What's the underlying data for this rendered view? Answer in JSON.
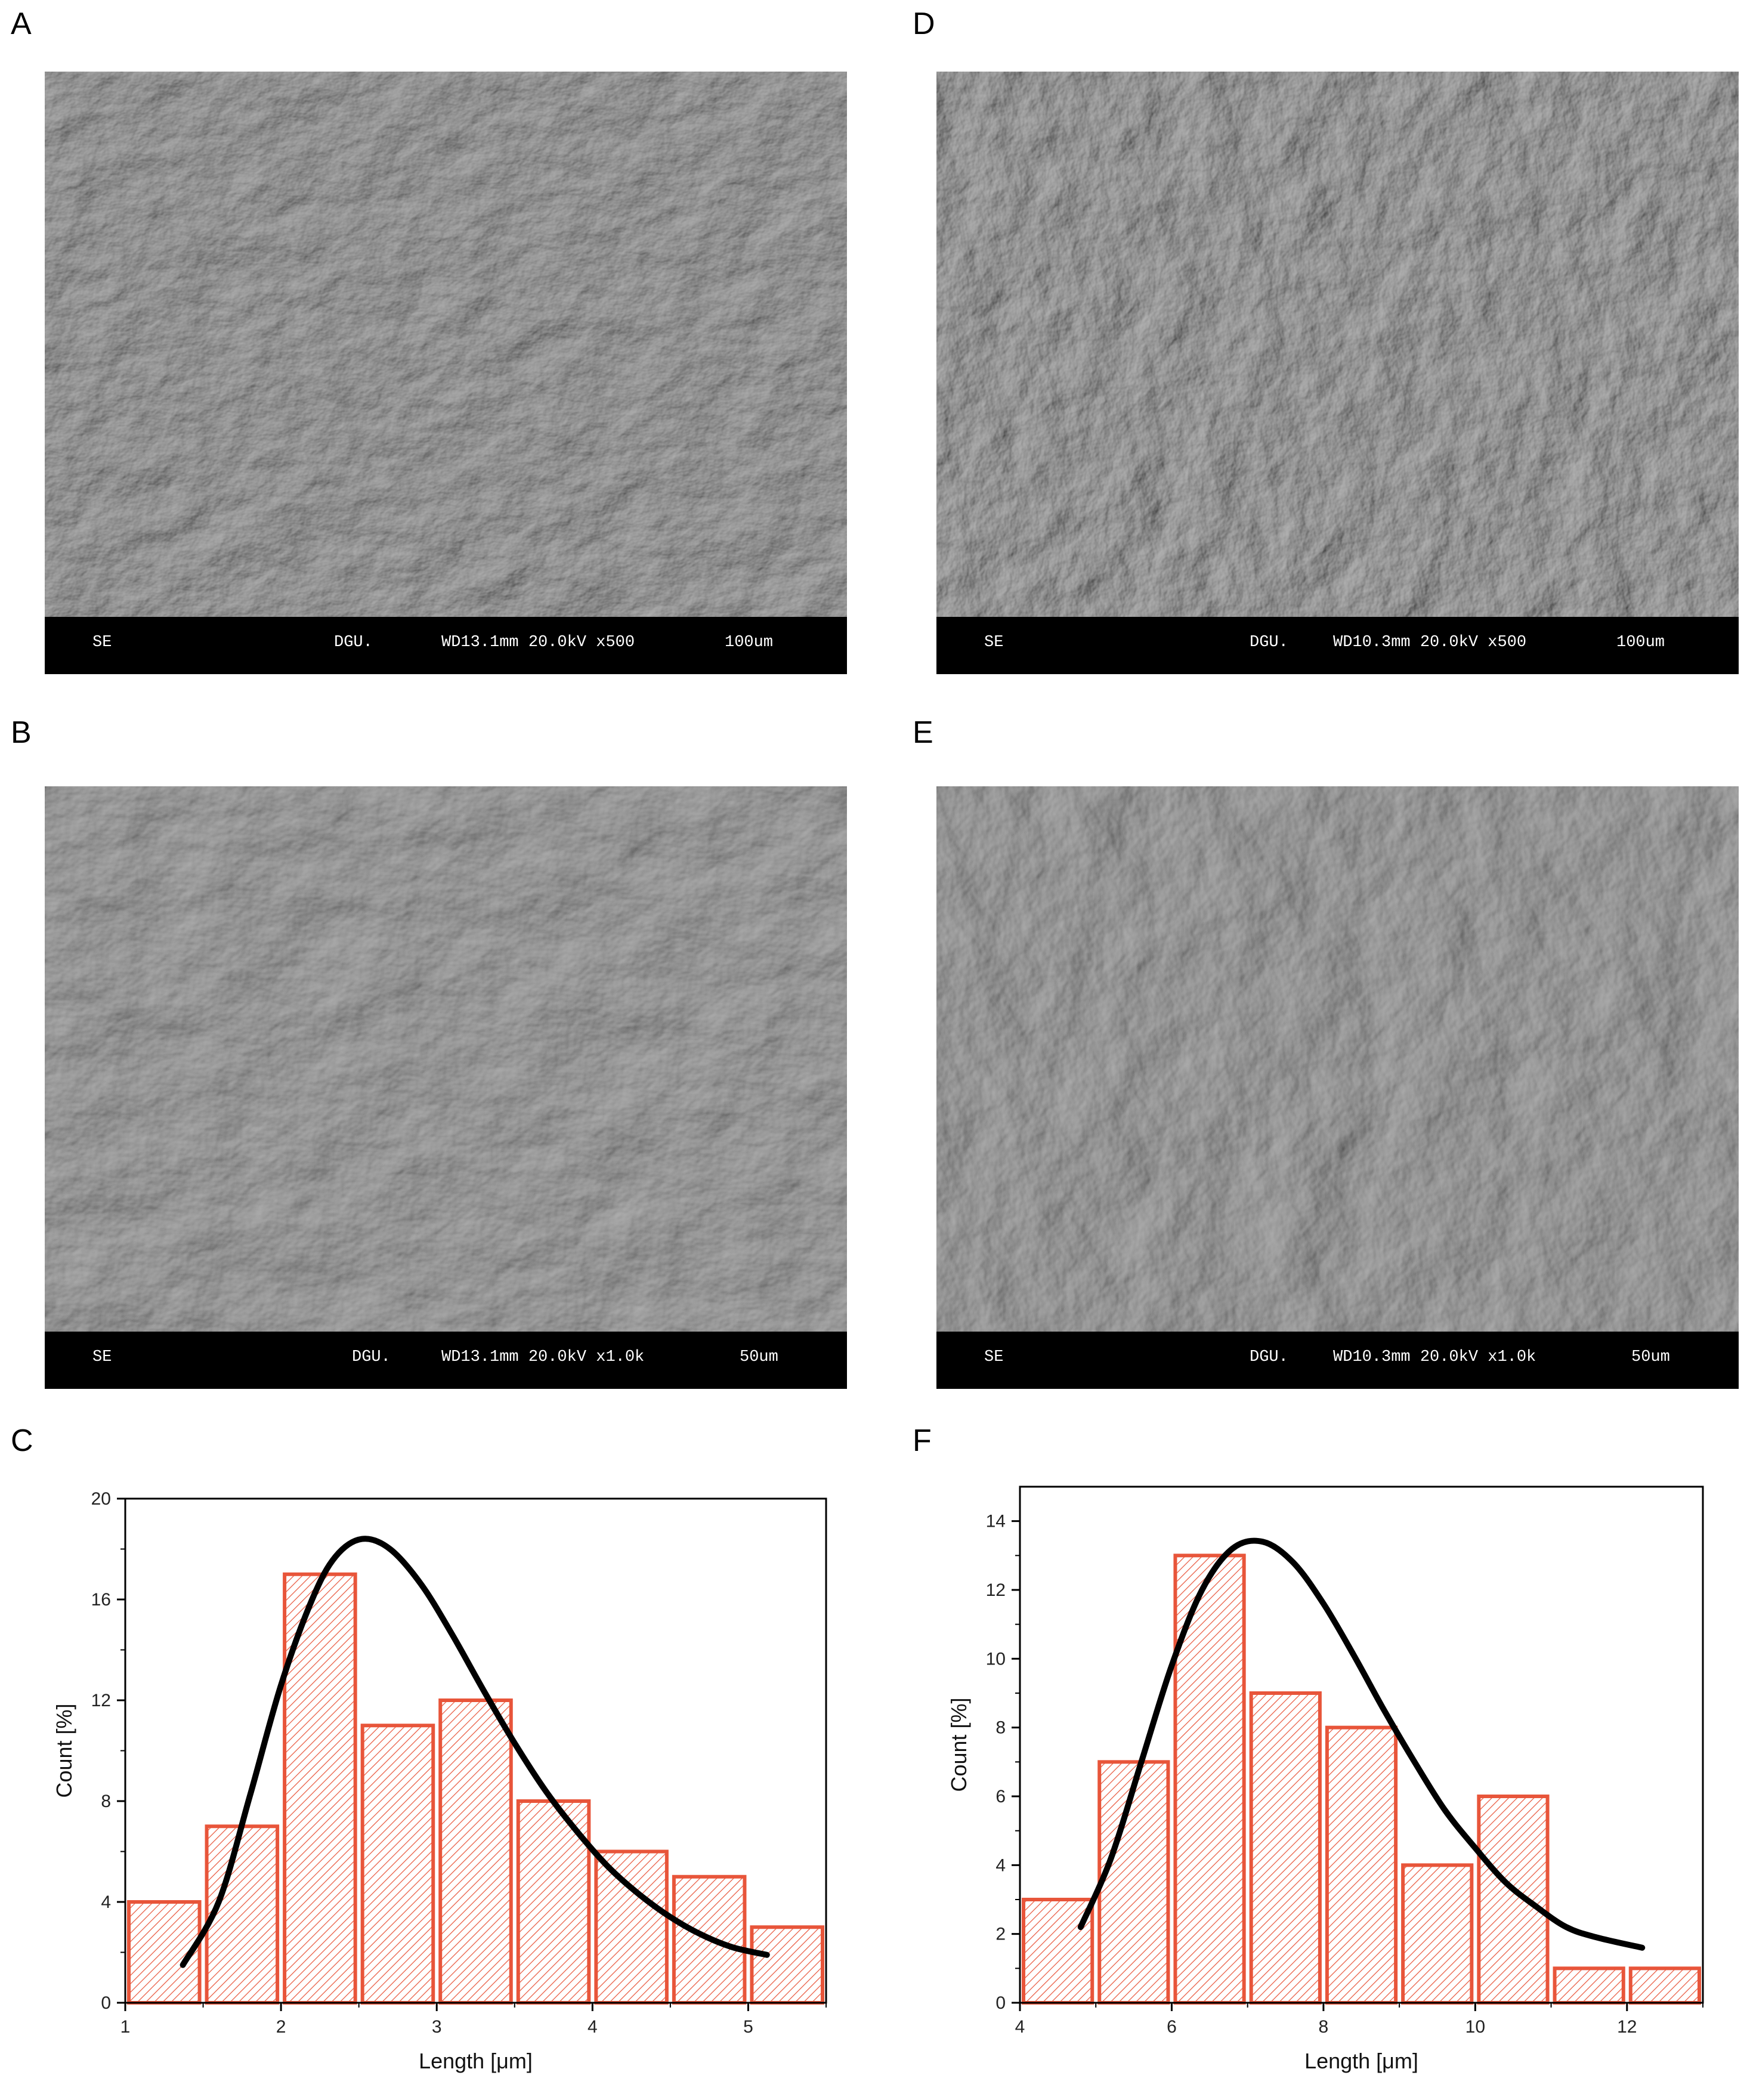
{
  "panels": {
    "A": {
      "letter": "A",
      "sem": {
        "left": "SE",
        "center": "DGU.",
        "params": "WD13.1mm 20.0kV x500",
        "scale": "100um"
      }
    },
    "B": {
      "letter": "B",
      "sem": {
        "left": "SE",
        "center": "DGU.",
        "params": "WD13.1mm 20.0kV x1.0k",
        "scale": "50um"
      }
    },
    "C": {
      "letter": "C"
    },
    "D": {
      "letter": "D",
      "sem": {
        "left": "SE",
        "center": "DGU.",
        "params": "WD10.3mm 20.0kV x500",
        "scale": "100um"
      }
    },
    "E": {
      "letter": "E",
      "sem": {
        "left": "SE",
        "center": "DGU.",
        "params": "WD10.3mm 20.0kV x1.0k",
        "scale": "50um"
      }
    },
    "F": {
      "letter": "F"
    }
  },
  "colors": {
    "bar_edge": "#e8553a",
    "hatch": "#e8553a",
    "fit_curve": "#000000",
    "sem_gray": "#5a5a5a"
  },
  "chart_data": [
    {
      "type": "bar",
      "panel": "C",
      "title": "",
      "xlabel": "Length [μm]",
      "ylabel": "Count [%]",
      "xlim": [
        1,
        5.5
      ],
      "ylim": [
        0,
        20
      ],
      "xticks": [
        1,
        2,
        3,
        4,
        5
      ],
      "yticks": [
        0,
        4,
        8,
        12,
        16,
        20
      ],
      "bin_width": 0.5,
      "bins": [
        {
          "x": 1.25,
          "value": 4
        },
        {
          "x": 1.75,
          "value": 7
        },
        {
          "x": 2.25,
          "value": 17
        },
        {
          "x": 2.75,
          "value": 11
        },
        {
          "x": 3.25,
          "value": 12
        },
        {
          "x": 3.75,
          "value": 8
        },
        {
          "x": 4.25,
          "value": 6
        },
        {
          "x": 4.75,
          "value": 5
        },
        {
          "x": 5.25,
          "value": 3
        }
      ],
      "fit_curve": {
        "type": "lognormal",
        "x": [
          1.37,
          1.6,
          1.8,
          2.0,
          2.2,
          2.35,
          2.52,
          2.7,
          2.9,
          3.1,
          3.3,
          3.5,
          3.7,
          3.9,
          4.1,
          4.3,
          4.5,
          4.7,
          4.9,
          5.12
        ],
        "y": [
          1.5,
          4.0,
          8.2,
          12.6,
          16.0,
          17.7,
          18.4,
          18.0,
          16.6,
          14.6,
          12.4,
          10.3,
          8.4,
          6.8,
          5.4,
          4.3,
          3.4,
          2.7,
          2.2,
          1.9
        ]
      },
      "grid": false,
      "legend": "none"
    },
    {
      "type": "bar",
      "panel": "F",
      "title": "",
      "xlabel": "Length [μm]",
      "ylabel": "Count [%]",
      "xlim": [
        4,
        13
      ],
      "ylim": [
        0,
        15
      ],
      "xticks": [
        4,
        6,
        8,
        10,
        12
      ],
      "yticks": [
        0,
        2,
        4,
        6,
        8,
        10,
        12,
        14
      ],
      "bin_width": 1,
      "bins": [
        {
          "x": 4.5,
          "value": 3
        },
        {
          "x": 5.5,
          "value": 7
        },
        {
          "x": 6.5,
          "value": 13
        },
        {
          "x": 7.5,
          "value": 9
        },
        {
          "x": 8.5,
          "value": 8
        },
        {
          "x": 9.5,
          "value": 4
        },
        {
          "x": 10.5,
          "value": 6
        },
        {
          "x": 11.5,
          "value": 1
        },
        {
          "x": 12.5,
          "value": 1
        }
      ],
      "fit_curve": {
        "type": "lognormal",
        "x": [
          4.8,
          5.2,
          5.6,
          6.0,
          6.4,
          6.8,
          7.2,
          7.6,
          8.0,
          8.4,
          8.8,
          9.2,
          9.6,
          10.0,
          10.4,
          10.8,
          11.2,
          11.6,
          12.2
        ],
        "y": [
          2.2,
          4.2,
          7.0,
          9.8,
          12.0,
          13.2,
          13.4,
          12.8,
          11.6,
          10.1,
          8.5,
          7.0,
          5.6,
          4.5,
          3.5,
          2.8,
          2.2,
          1.9,
          1.6
        ]
      },
      "grid": false,
      "legend": "none"
    }
  ]
}
